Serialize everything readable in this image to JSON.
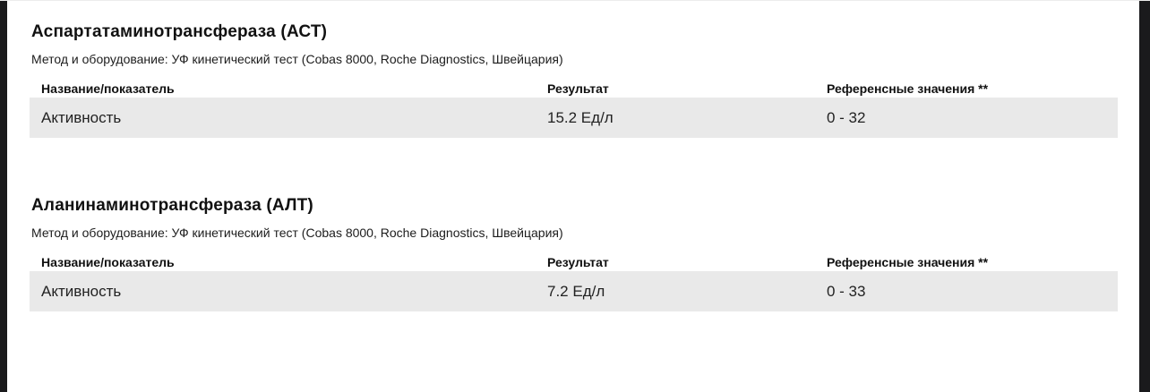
{
  "page": {
    "background": "#ffffff",
    "frame_color": "#1a1a1c",
    "row_highlight_color": "#e9e9e9"
  },
  "sections": [
    {
      "title": "Аспартатаминотрансфераза (АСТ)",
      "method": "Метод и оборудование: УФ кинетический тест (Cobas 8000, Roche Diagnostics, Швейцария)",
      "table": {
        "headers": [
          "Название/показатель",
          "Результат",
          "Референсные значения **"
        ],
        "rows": [
          {
            "name": "Активность",
            "result": "15.2 Ед/л",
            "reference": "0 - 32"
          }
        ]
      }
    },
    {
      "title": "Аланинаминотрансфераза (АЛТ)",
      "method": "Метод и оборудование: УФ кинетический тест (Cobas 8000, Roche Diagnostics, Швейцария)",
      "table": {
        "headers": [
          "Название/показатель",
          "Результат",
          "Референсные значения **"
        ],
        "rows": [
          {
            "name": "Активность",
            "result": "7.2 Ед/л",
            "reference": "0 - 33"
          }
        ]
      }
    }
  ]
}
